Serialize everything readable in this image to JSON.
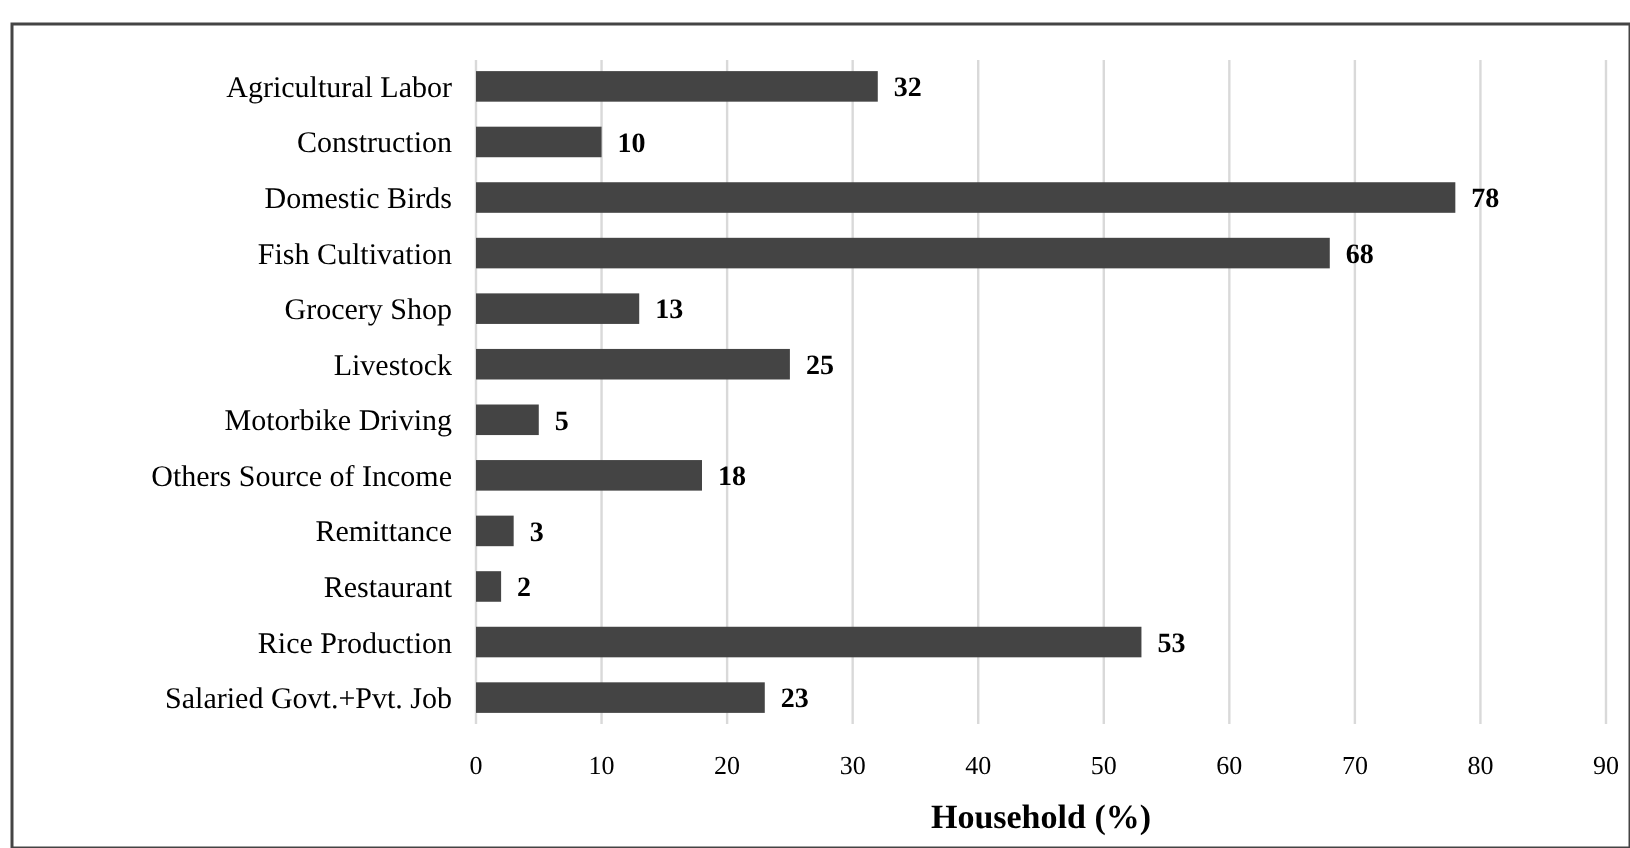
{
  "chart_data": {
    "type": "bar",
    "orientation": "horizontal",
    "xlabel": "Household (%)",
    "categories": [
      "Agricultural Labor",
      "Construction",
      "Domestic Birds",
      "Fish Cultivation",
      "Grocery Shop",
      "Livestock",
      "Motorbike Driving",
      "Others Source of Income",
      "Remittance",
      "Restaurant",
      "Rice Production",
      "Salaried Govt.+Pvt. Job"
    ],
    "values": [
      32,
      10,
      78,
      68,
      13,
      25,
      5,
      18,
      3,
      2,
      53,
      23
    ],
    "color": "#444444",
    "xlim": [
      0,
      90
    ],
    "xticks": [
      0,
      10,
      20,
      30,
      40,
      50,
      60,
      70,
      80,
      90
    ],
    "grid": "x",
    "data_labels": true
  }
}
